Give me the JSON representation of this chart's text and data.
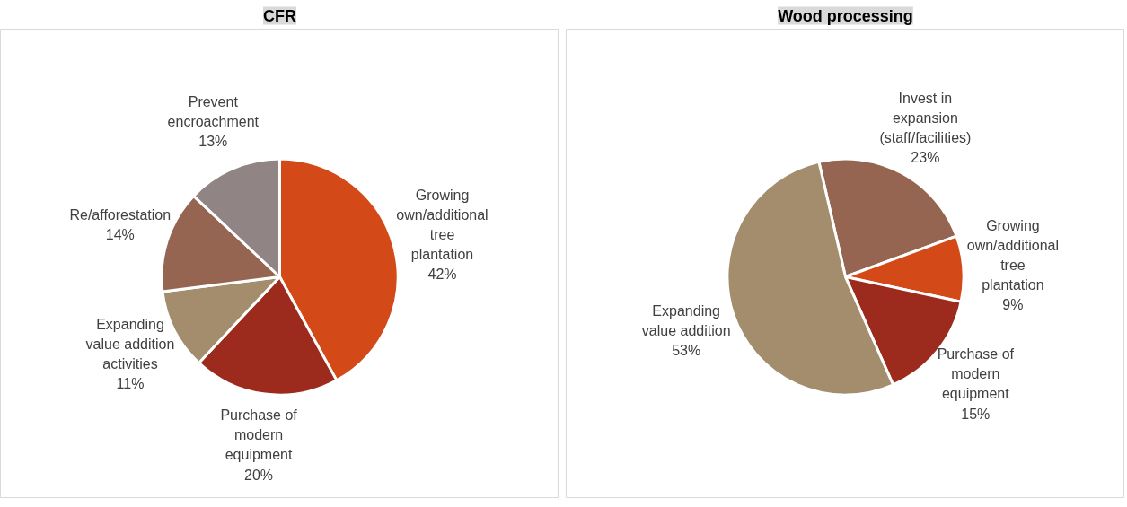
{
  "chart_data": [
    {
      "type": "pie",
      "title": "CFR",
      "value_labels": [
        "42%",
        "20%",
        "11%",
        "14%",
        "13%"
      ],
      "categories": [
        "Growing own/additional tree plantation",
        "Purchase of modern equipment",
        "Expanding value addition activities",
        "Re/afforestation",
        "Prevent encroachment"
      ],
      "values": [
        42,
        20,
        11,
        14,
        13
      ],
      "colors": [
        "#d34a18",
        "#9c2b1e",
        "#a38d6d",
        "#956552",
        "#908584"
      ]
    },
    {
      "type": "pie",
      "title": "Wood processing",
      "value_labels": [
        "23%",
        "9%",
        "15%",
        "53%"
      ],
      "categories": [
        "Invest in expansion (staff/facilities)",
        "Growing own/additional tree plantation",
        "Purchase of modern equipment",
        "Expanding value addition"
      ],
      "values": [
        23,
        9,
        15,
        53
      ],
      "colors": [
        "#956552",
        "#d34a18",
        "#9c2b1e",
        "#a38d6d"
      ]
    }
  ]
}
